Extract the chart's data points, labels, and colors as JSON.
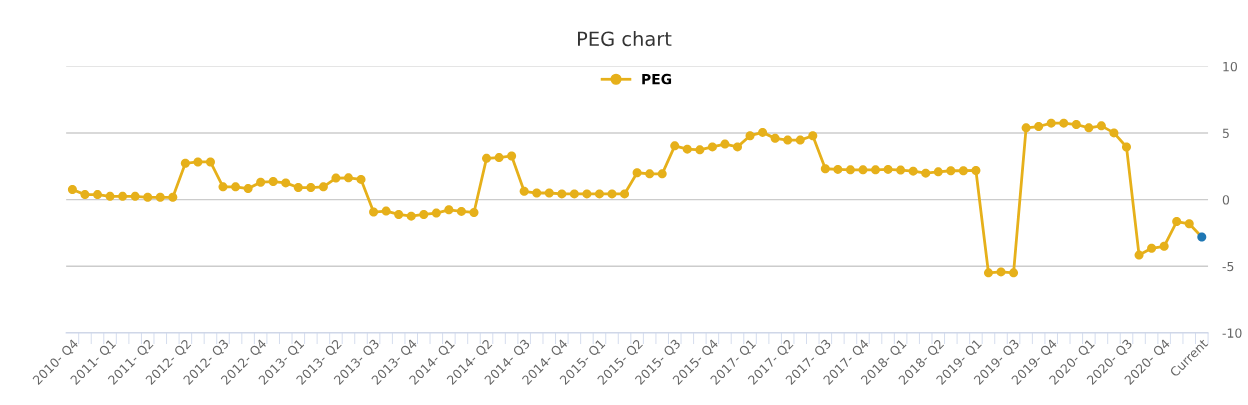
{
  "chart_data": {
    "type": "line",
    "title": "PEG chart",
    "categories": [
      "2010- Q4",
      null,
      null,
      "2011- Q1",
      null,
      null,
      "2011- Q2",
      null,
      null,
      "2012- Q2",
      null,
      null,
      "2012- Q3",
      null,
      null,
      "2012- Q4",
      null,
      null,
      "2013- Q1",
      null,
      null,
      "2013- Q2",
      null,
      null,
      "2013- Q3",
      null,
      null,
      "2013- Q4",
      null,
      null,
      "2014- Q1",
      null,
      null,
      "2014- Q2",
      null,
      null,
      "2014- Q3",
      null,
      null,
      "2014- Q4",
      null,
      null,
      "2015- Q1",
      null,
      null,
      "2015- Q2",
      null,
      null,
      "2015- Q3",
      null,
      null,
      "2015- Q4",
      null,
      null,
      "2017- Q1",
      null,
      null,
      "2017- Q2",
      null,
      null,
      "2017- Q3",
      null,
      null,
      "2017- Q4",
      null,
      null,
      "2018- Q1",
      null,
      null,
      "2018- Q2",
      null,
      null,
      "2019- Q1",
      null,
      null,
      "2019- Q3",
      null,
      null,
      "2019- Q4",
      null,
      null,
      "2020- Q1",
      null,
      null,
      "2020- Q3",
      null,
      null,
      "2020- Q4",
      null,
      null,
      "Current"
    ],
    "series": [
      {
        "name": "PEG",
        "color": "#e6b01a",
        "values": [
          0.76,
          0.38,
          0.38,
          0.25,
          0.25,
          0.25,
          0.18,
          0.18,
          0.18,
          2.73,
          2.83,
          2.83,
          0.96,
          0.96,
          0.83,
          1.31,
          1.36,
          1.26,
          0.91,
          0.91,
          0.96,
          1.62,
          1.64,
          1.52,
          -0.93,
          -0.86,
          -1.11,
          -1.24,
          -1.11,
          -1.01,
          -0.76,
          -0.88,
          -0.96,
          3.1,
          3.16,
          3.28,
          0.63,
          0.5,
          0.5,
          0.43,
          0.43,
          0.43,
          0.43,
          0.43,
          0.43,
          2.02,
          1.94,
          1.94,
          4.04,
          3.79,
          3.74,
          3.96,
          4.17,
          3.96,
          4.8,
          5.05,
          4.6,
          4.47,
          4.47,
          4.8,
          2.32,
          2.27,
          2.24,
          2.24,
          2.24,
          2.27,
          2.22,
          2.14,
          1.99,
          2.09,
          2.17,
          2.17,
          2.19,
          -5.49,
          -5.42,
          -5.49,
          5.39,
          5.49,
          5.74,
          5.74,
          5.64,
          5.39,
          5.54,
          5.01,
          3.95,
          -4.16,
          -3.65,
          -3.5,
          -1.64,
          -1.81,
          -2.8
        ],
        "colors": [
          "#e6b01a",
          "#e6b01a",
          "#e6b01a",
          "#e6b01a",
          "#e6b01a",
          "#e6b01a",
          "#e6b01a",
          "#e6b01a",
          "#e6b01a",
          "#e6b01a",
          "#e6b01a",
          "#e6b01a",
          "#e6b01a",
          "#e6b01a",
          "#e6b01a",
          "#e6b01a",
          "#e6b01a",
          "#e6b01a",
          "#e6b01a",
          "#e6b01a",
          "#e6b01a",
          "#e6b01a",
          "#e6b01a",
          "#e6b01a",
          "#e6b01a",
          "#e6b01a",
          "#e6b01a",
          "#e6b01a",
          "#e6b01a",
          "#e6b01a",
          "#e6b01a",
          "#e6b01a",
          "#e6b01a",
          "#e6b01a",
          "#e6b01a",
          "#e6b01a",
          "#e6b01a",
          "#e6b01a",
          "#e6b01a",
          "#e6b01a",
          "#e6b01a",
          "#e6b01a",
          "#e6b01a",
          "#e6b01a",
          "#e6b01a",
          "#e6b01a",
          "#e6b01a",
          "#e6b01a",
          "#e6b01a",
          "#e6b01a",
          "#e6b01a",
          "#e6b01a",
          "#e6b01a",
          "#e6b01a",
          "#e6b01a",
          "#e6b01a",
          "#e6b01a",
          "#e6b01a",
          "#e6b01a",
          "#e6b01a",
          "#e6b01a",
          "#e6b01a",
          "#e6b01a",
          "#e6b01a",
          "#e6b01a",
          "#e6b01a",
          "#e6b01a",
          "#e6b01a",
          "#e6b01a",
          "#e6b01a",
          "#e6b01a",
          "#e6b01a",
          "#e6b01a",
          "#e6b01a",
          "#e6b01a",
          "#e6b01a",
          "#e6b01a",
          "#e6b01a",
          "#e6b01a",
          "#e6b01a",
          "#e6b01a",
          "#e6b01a",
          "#e6b01a",
          "#e6b01a",
          "#e6b01a",
          "#e6b01a",
          "#e6b01a",
          "#e6b01a",
          "#e6b01a",
          "#e6b01a",
          "#1f77b4"
        ]
      }
    ],
    "ylim": [
      -10,
      10
    ],
    "yticks": [
      -10,
      -5,
      0,
      5,
      10
    ],
    "grid": "y",
    "legend": "top",
    "marker": "circle",
    "line_style": "solid"
  }
}
